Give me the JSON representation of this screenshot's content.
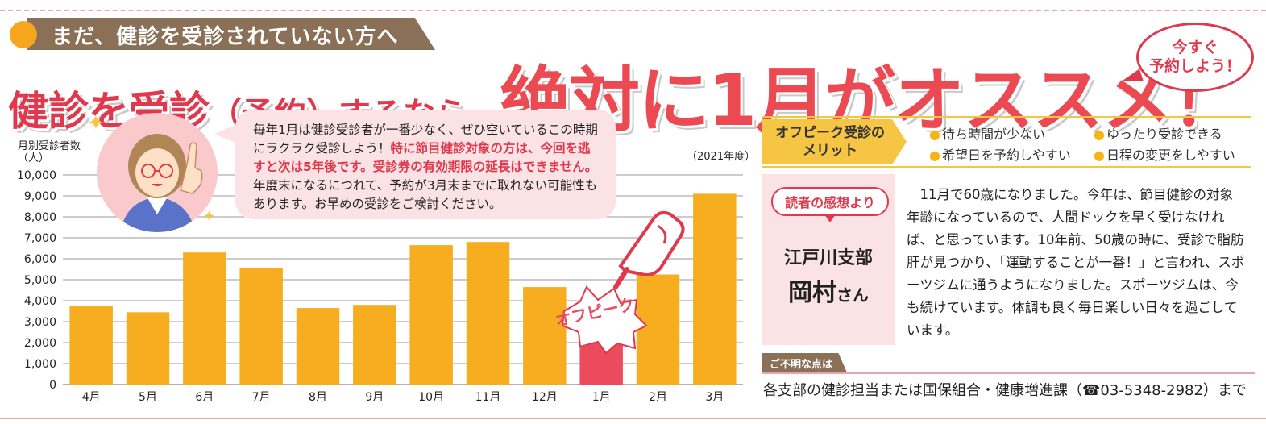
{
  "banner": {
    "text": "まだ、健診を受診されていない方へ"
  },
  "headline": {
    "part1": "健診を受診",
    "part2": "（予約）するなら、",
    "part3": "絶対に1月がオススメ",
    "part4": "！"
  },
  "badge": {
    "line1": "今すぐ",
    "line2": "予約しよう！"
  },
  "speech": {
    "normal1": "毎年1月は健診受診者が一番少なく、ぜひ空いているこの時期にラクラク受診しよう！",
    "highlight": "特に節目健診対象の方は、今回を逃すと次は5年後です。受診券の有効期限の延長はできません。",
    "normal2": "年度末になるにつれて、予約が3月末までに取れない可能性もあります。お早めの受診をご検討ください。"
  },
  "offpeak_label": "オフピーク",
  "chart_data": {
    "type": "bar",
    "ylabel": "月別受診者数\n（人）",
    "ylabel_line1": "月別受診者数",
    "ylabel_line2": "（人）",
    "note": "（2021年度）",
    "categories": [
      "4月",
      "5月",
      "6月",
      "7月",
      "8月",
      "9月",
      "10月",
      "11月",
      "12月",
      "1月",
      "2月",
      "3月"
    ],
    "values": [
      3750,
      3450,
      6300,
      5550,
      3650,
      3800,
      6650,
      6800,
      4650,
      2650,
      5250,
      9100
    ],
    "ylim": [
      0,
      10000
    ],
    "yticks": [
      "0",
      "1,000",
      "2,000",
      "3,000",
      "4,000",
      "5,000",
      "6,000",
      "7,000",
      "8,000",
      "9,000",
      "10,000"
    ],
    "highlight_index": 9,
    "colors": {
      "normal": "#f6ad1f",
      "highlight": "#ec4a5d",
      "grid": "#9a9a9a"
    },
    "grid": true
  },
  "merit": {
    "label_line1": "オフピーク受診の",
    "label_line2": "メリット",
    "items": [
      "待ち時間が少ない",
      "ゆったり受診できる",
      "希望日を予約しやすい",
      "日程の変更をしやすい"
    ]
  },
  "reader": {
    "tag": "読者の感想より",
    "branch": "江戸川支部",
    "name": "岡村",
    "honorific": "さん",
    "text": "11月で60歳になりました。今年は、節目健診の対象年齢になっているので、人間ドックを早く受けなければ、と思っています。10年前、50歳の時に、受診で脂肪肝が見つかり、「運動することが一番！」と言われ、スポーツジムに通うようになりました。スポーツジムは、今も続けています。体調も良く毎日楽しい日々を過ごしています。"
  },
  "contact": {
    "tag": "ご不明な点は",
    "text": "各支部の健診担当または国保組合・健康増進課（☎03-5348-2982）まで"
  }
}
